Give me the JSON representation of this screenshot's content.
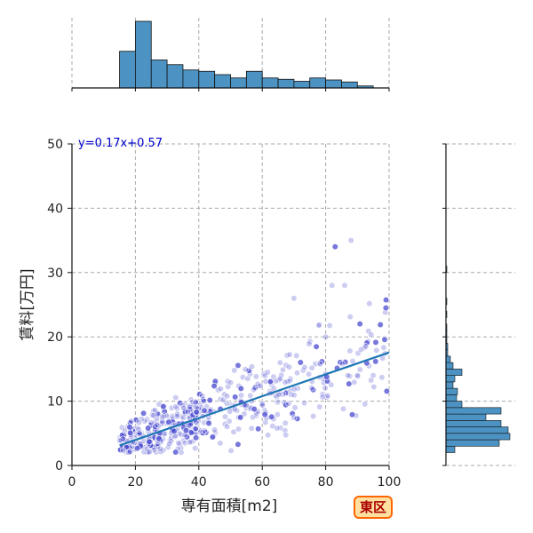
{
  "chart_data": {
    "type": "scatter",
    "xlabel": "専有面積[m2]",
    "ylabel": "賃料[万円]",
    "xlim": [
      0,
      100
    ],
    "ylim": [
      0,
      50
    ],
    "xticks": [
      "0",
      "20",
      "40",
      "60",
      "80",
      "100"
    ],
    "yticks": [
      "0",
      "10",
      "20",
      "30",
      "40",
      "50"
    ],
    "grid": true,
    "annotation": "y=0.17x+0.57",
    "regression": {
      "slope": 0.17,
      "intercept": 0.57,
      "x_range": [
        15,
        100
      ]
    },
    "point_color": "#4a4ad0",
    "line_color": "#1f77b4",
    "hist_color": "#4c93c3",
    "x_hist": {
      "bin_edges": [
        15,
        20,
        25,
        30,
        35,
        40,
        45,
        50,
        55,
        60,
        65,
        70,
        75,
        80,
        85,
        90,
        95
      ],
      "counts": [
        55,
        100,
        42,
        35,
        27,
        25,
        20,
        15,
        25,
        15,
        13,
        10,
        15,
        12,
        9,
        3
      ]
    },
    "y_hist": {
      "bin_edges": [
        2,
        3,
        4,
        5,
        6,
        7,
        8,
        9,
        10,
        11,
        12,
        13,
        14,
        15,
        16,
        17,
        18,
        19,
        20,
        21,
        22,
        23,
        24,
        25,
        26,
        27,
        28,
        29,
        30,
        31
      ],
      "counts": [
        10,
        60,
        72,
        70,
        62,
        45,
        62,
        18,
        12,
        13,
        8,
        10,
        18,
        8,
        5,
        2,
        2,
        1,
        1,
        1,
        0,
        1,
        0,
        1,
        0,
        0,
        0,
        0,
        1
      ]
    }
  },
  "badge": {
    "label": "東区",
    "fill": "#ffe0a0",
    "border": "#ff6600",
    "text_color": "#aa0000"
  }
}
